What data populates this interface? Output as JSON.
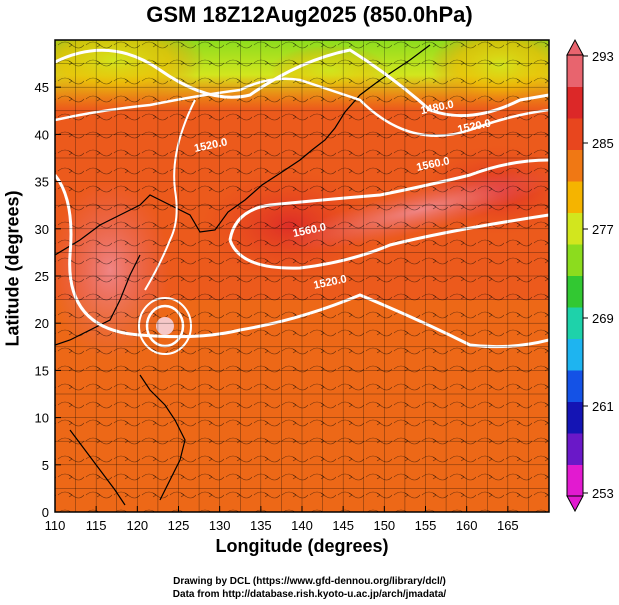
{
  "title": "GSM 18Z12Aug2025 (850.0hPa)",
  "xlabel": "Longitude (degrees)",
  "ylabel": "Latitude (degrees)",
  "credits": [
    "Drawing by DCL (https://www.gfd-dennou.org/library/dcl/)",
    "Data from http://database.rish.kyoto-u.ac.jp/arch/jmadata/"
  ],
  "chart_data": {
    "type": "heatmap",
    "x_range": [
      110,
      170
    ],
    "y_range": [
      0,
      50
    ],
    "x_ticks": [
      "110",
      "115",
      "120",
      "125",
      "130",
      "135",
      "140",
      "145",
      "150",
      "155",
      "160",
      "165"
    ],
    "y_ticks": [
      "0",
      "5",
      "10",
      "15",
      "20",
      "25",
      "30",
      "35",
      "40",
      "45"
    ],
    "colorbar": {
      "min": 253,
      "max": 293,
      "tick_labels": [
        "293",
        "285",
        "277",
        "269",
        "261",
        "253"
      ],
      "colors": [
        "#e21ad0",
        "#6a18c8",
        "#1414b4",
        "#1452e6",
        "#1eb4f0",
        "#1ed2aa",
        "#32c832",
        "#8cdc1e",
        "#d2e61e",
        "#f5b400",
        "#f07814",
        "#e8461e",
        "#dc2828",
        "#e8646e"
      ]
    },
    "contour_labels": [
      {
        "text": "1480.0",
        "lon": 156.5,
        "lat": 42.5
      },
      {
        "text": "1520.0",
        "lon": 161.0,
        "lat": 40.5
      },
      {
        "text": "1560.0",
        "lon": 156.0,
        "lat": 36.5
      },
      {
        "text": "1560.0",
        "lon": 141.0,
        "lat": 29.5
      },
      {
        "text": "1520.0",
        "lon": 143.5,
        "lat": 24.0
      },
      {
        "text": "1520.0",
        "lon": 129.0,
        "lat": 38.5
      }
    ],
    "colors": {
      "land_outline": "#000000",
      "contour": "#ffffff",
      "grid": "#000000"
    }
  }
}
